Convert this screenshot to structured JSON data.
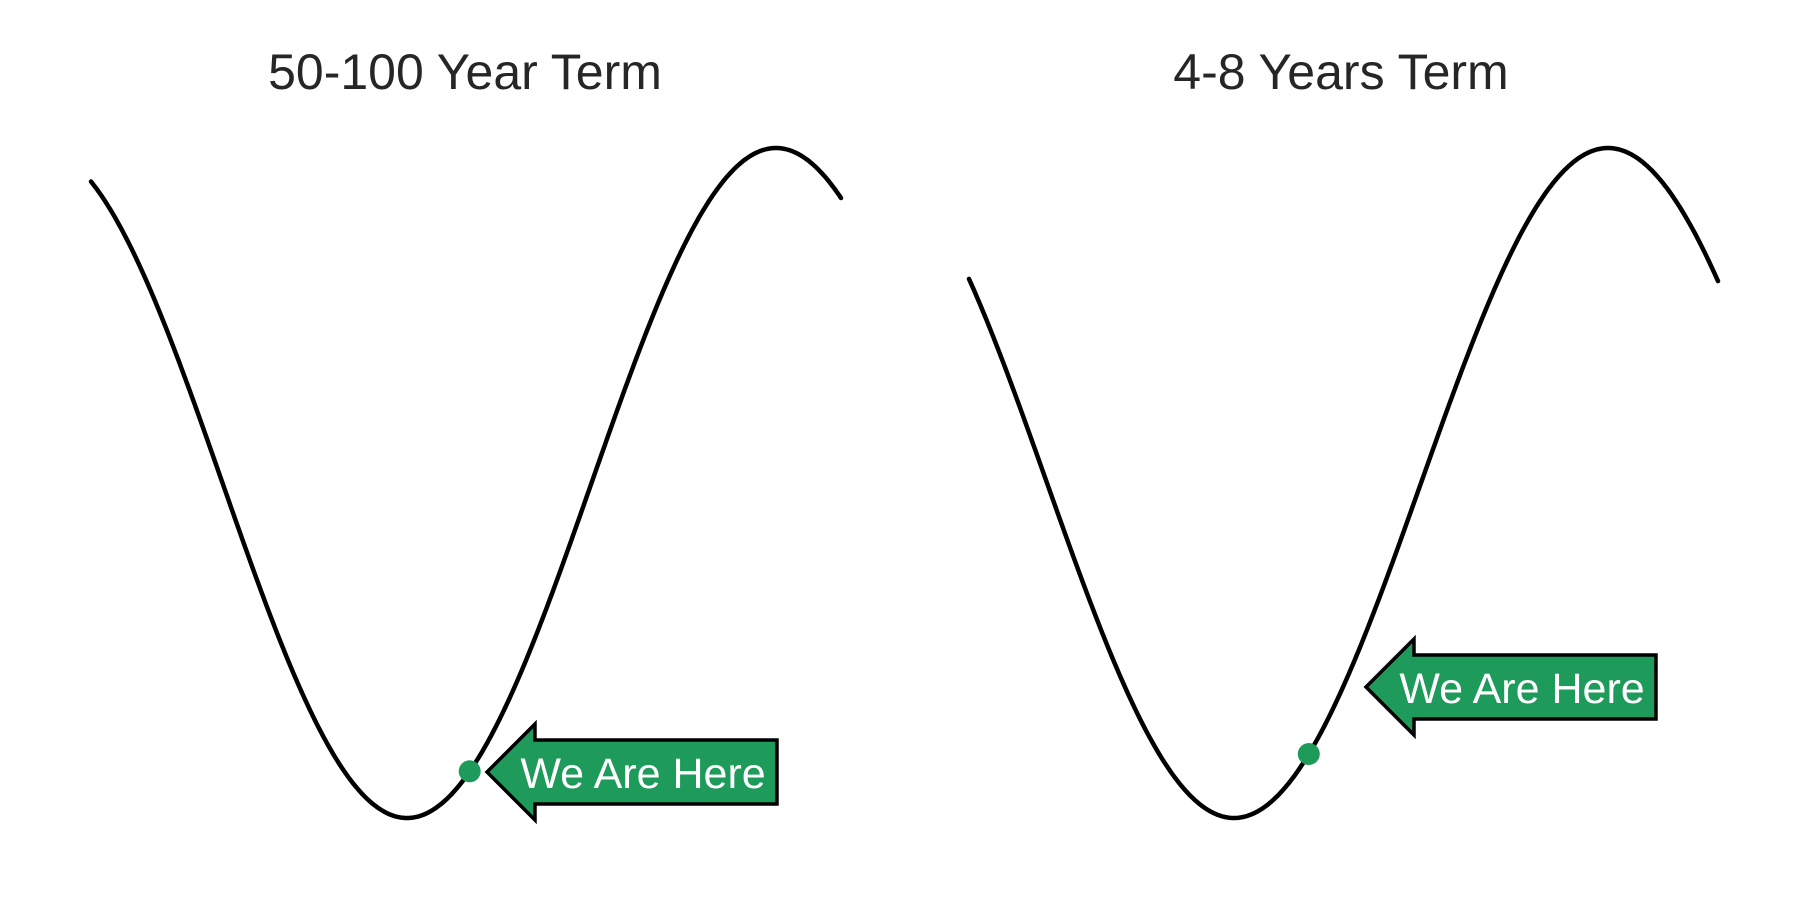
{
  "colors": {
    "curve": "#000000",
    "marker": "#1e9a5a",
    "callout_fill": "#1e9a5a",
    "callout_border": "#000000",
    "callout_text": "#ffffff",
    "title": "#262626"
  },
  "panels": [
    {
      "title": "50-100 Year Term",
      "callout": "We Are Here",
      "curve_shape": "cosine wave: falling from upper-left to a trough, then rising to a peak and turning down at the right end",
      "marker_position": "rising side, just past the trough"
    },
    {
      "title": "4-8 Years Term",
      "callout": "We Are Here",
      "curve_shape": "cosine wave: falling from upper-left to a trough, then rising to a peak and turning down at the right end",
      "marker_position": "rising side, about one-fifth of the way up from the trough"
    }
  ]
}
